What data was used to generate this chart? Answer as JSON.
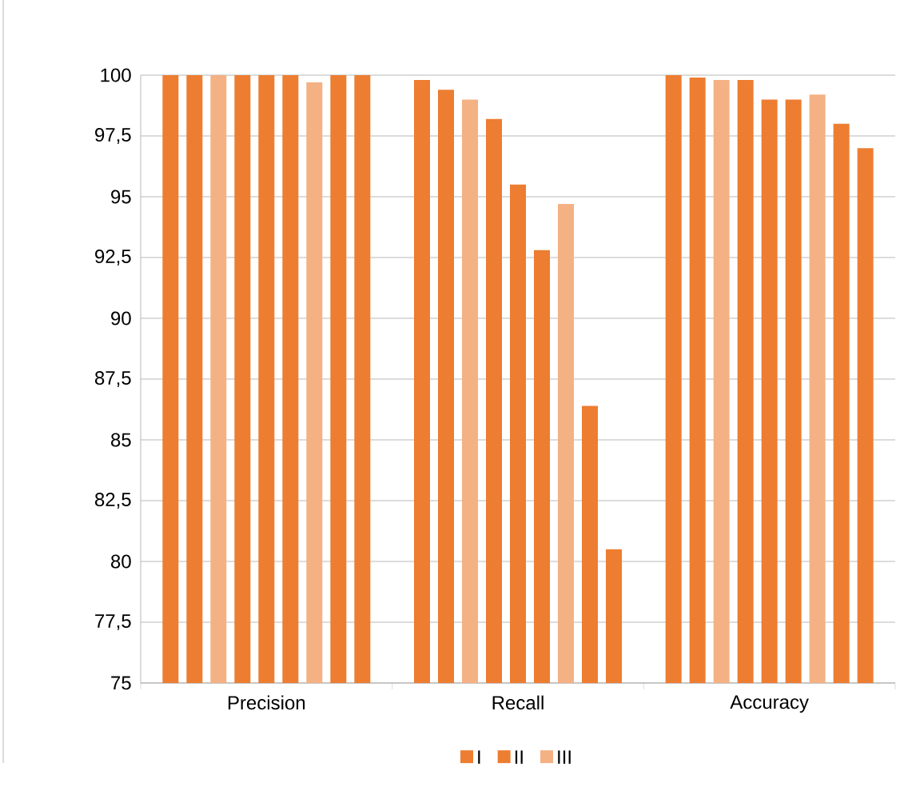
{
  "chart_data": {
    "type": "bar",
    "categories": [
      "Precision",
      "Recall",
      "Accuracy"
    ],
    "series": [
      {
        "name": "I",
        "color": "#ed7d31",
        "values": [
          100,
          99.8,
          100
        ]
      },
      {
        "name": "II",
        "color": "#ed7d31",
        "values": [
          100,
          99.4,
          99.9
        ]
      },
      {
        "name": "III",
        "color": "#f4b183",
        "values": [
          100,
          99.0,
          99.8
        ]
      },
      {
        "color": "#ed7d31",
        "values": [
          100,
          98.2,
          99.8
        ]
      },
      {
        "color": "#ed7d31",
        "values": [
          100,
          95.5,
          99.0
        ]
      },
      {
        "color": "#ed7d31",
        "values": [
          100,
          92.8,
          99.0
        ]
      },
      {
        "color": "#f4b183",
        "values": [
          99.7,
          94.7,
          99.2
        ]
      },
      {
        "color": "#ed7d31",
        "values": [
          100,
          86.4,
          98.0
        ]
      },
      {
        "color": "#ed7d31",
        "values": [
          100,
          80.5,
          97.0
        ]
      }
    ],
    "ylim": [
      75,
      100
    ],
    "yticks": [
      75,
      {
        "value": 77.5,
        "label": "77,5"
      },
      80,
      {
        "value": 82.5,
        "label": "82,5"
      },
      85,
      {
        "value": 87.5,
        "label": "87,5"
      },
      90,
      {
        "value": 92.5,
        "label": "92,5"
      },
      95,
      {
        "value": 97.5,
        "label": "97,5"
      },
      100
    ],
    "grid": "y",
    "legend": "bottom"
  }
}
